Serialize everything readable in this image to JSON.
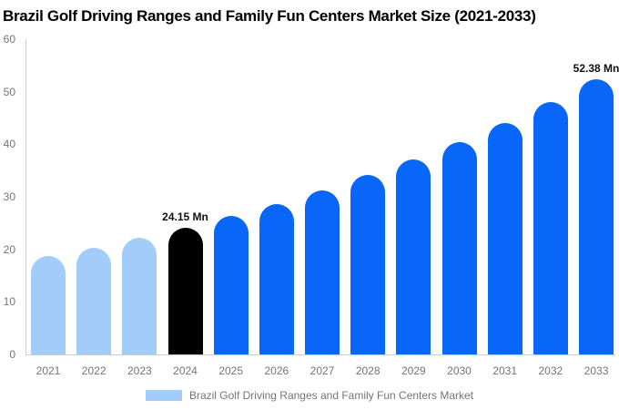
{
  "title": "Brazil Golf Driving Ranges and Family Fun Centers Market Size (2021-2033)",
  "legend": {
    "label": "Brazil Golf Driving Ranges and Family Fun Centers Market",
    "swatch_color": "#A2CDFA"
  },
  "chart_data": {
    "type": "bar",
    "title": "Brazil Golf Driving Ranges and Family Fun Centers Market Size (2021-2033)",
    "unit": "Mn",
    "categories": [
      "2021",
      "2022",
      "2023",
      "2024",
      "2025",
      "2026",
      "2027",
      "2028",
      "2029",
      "2030",
      "2031",
      "2032",
      "2033"
    ],
    "values": [
      18.65,
      20.33,
      22.16,
      24.15,
      26.32,
      28.69,
      31.27,
      34.08,
      37.14,
      40.48,
      44.12,
      48.08,
      52.38
    ],
    "bar_colors": [
      "#A2CDFA",
      "#A2CDFA",
      "#A2CDFA",
      "#000000",
      "#0866F8",
      "#0866F8",
      "#0866F8",
      "#0866F8",
      "#0866F8",
      "#0866F8",
      "#0866F8",
      "#0866F8",
      "#0866F8"
    ],
    "annotations": [
      {
        "category": "2024",
        "text": "24.15 Mn"
      },
      {
        "category": "2033",
        "text": "52.38 Mn"
      }
    ],
    "xlabel": "",
    "ylabel": "",
    "ylim": [
      0,
      60
    ],
    "y_ticks": [
      0,
      10,
      20,
      30,
      40,
      50,
      60
    ],
    "grid": false,
    "legend_position": "bottom",
    "colors": {
      "historical": "#A2CDFA",
      "base_year": "#000000",
      "forecast": "#0866F8",
      "axis_text": "#757575",
      "axis_line": "#CCCCCC",
      "label_text": "#111111"
    }
  }
}
